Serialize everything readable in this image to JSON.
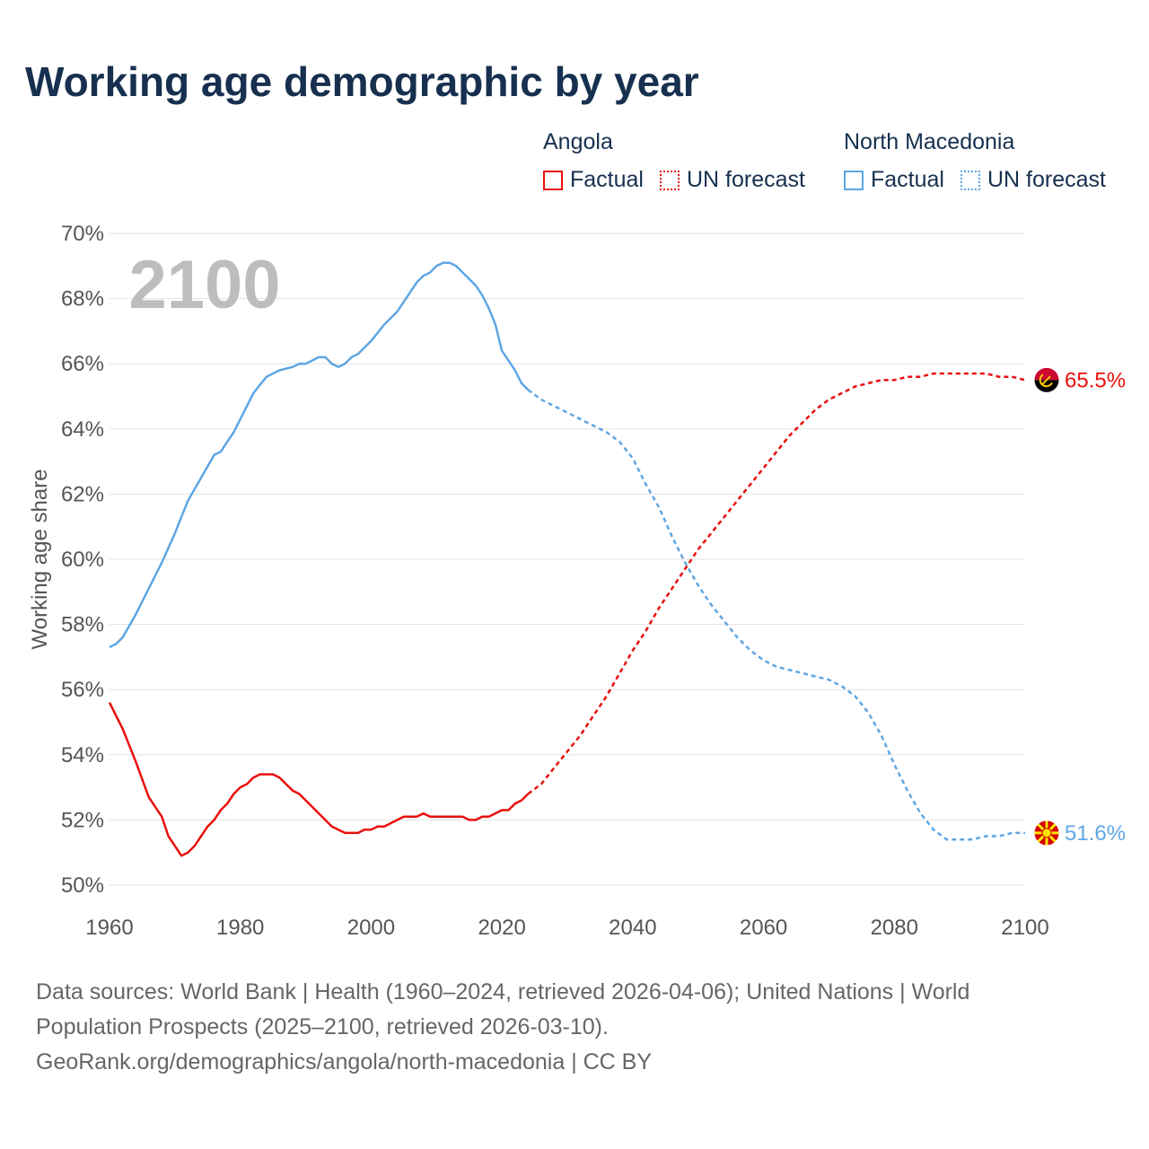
{
  "title": "Working age demographic by year",
  "legend": {
    "groups": [
      {
        "name": "Angola",
        "factual": "Factual",
        "forecast": "UN forecast",
        "color": "#e8100c"
      },
      {
        "name": "North Macedonia",
        "factual": "Factual",
        "forecast": "UN forecast",
        "color": "#5fa6e3"
      }
    ]
  },
  "year_watermark": "2100",
  "footer": {
    "sources": "Data sources: World Bank | Health (1960–2024, retrieved 2026-04-06); United Nations | World Population Prospects (2025–2100, retrieved 2026-03-10).",
    "credit": "GeoRank.org/demographics/angola/north-macedonia | CC BY"
  },
  "chart_data": {
    "type": "line",
    "title": "Working age demographic by year",
    "xlabel": "",
    "ylabel": "Working age share",
    "xlim": [
      1960,
      2100
    ],
    "ylim": [
      50,
      70
    ],
    "xticks": [
      1960,
      1980,
      2000,
      2020,
      2040,
      2060,
      2080,
      2100
    ],
    "xtick_labels": [
      "1960",
      "1980",
      "2000",
      "2020",
      "2040",
      "2060",
      "2080",
      "2100"
    ],
    "yticks": [
      50,
      52,
      54,
      56,
      58,
      60,
      62,
      64,
      66,
      68,
      70
    ],
    "ytick_labels": [
      "50%",
      "52%",
      "54%",
      "56%",
      "58%",
      "60%",
      "62%",
      "64%",
      "66%",
      "68%",
      "70%"
    ],
    "factual_range": [
      1960,
      2024
    ],
    "forecast_range": [
      2024,
      2100
    ],
    "series": [
      {
        "name": "Angola",
        "color": "#e8100c",
        "end_label": "65.5%",
        "flag_icon": "angola-flag-icon",
        "points": [
          [
            1960,
            55.6
          ],
          [
            1962,
            54.8
          ],
          [
            1964,
            53.8
          ],
          [
            1966,
            52.7
          ],
          [
            1968,
            52.1
          ],
          [
            1969,
            51.5
          ],
          [
            1971,
            50.9
          ],
          [
            1972,
            51.0
          ],
          [
            1973,
            51.2
          ],
          [
            1975,
            51.8
          ],
          [
            1976,
            52.0
          ],
          [
            1977,
            52.3
          ],
          [
            1978,
            52.5
          ],
          [
            1979,
            52.8
          ],
          [
            1980,
            53.0
          ],
          [
            1981,
            53.1
          ],
          [
            1982,
            53.3
          ],
          [
            1983,
            53.4
          ],
          [
            1985,
            53.4
          ],
          [
            1986,
            53.3
          ],
          [
            1987,
            53.1
          ],
          [
            1988,
            52.9
          ],
          [
            1989,
            52.8
          ],
          [
            1990,
            52.6
          ],
          [
            1992,
            52.2
          ],
          [
            1994,
            51.8
          ],
          [
            1996,
            51.6
          ],
          [
            1998,
            51.6
          ],
          [
            1999,
            51.7
          ],
          [
            2000,
            51.7
          ],
          [
            2001,
            51.8
          ],
          [
            2002,
            51.8
          ],
          [
            2004,
            52.0
          ],
          [
            2005,
            52.1
          ],
          [
            2006,
            52.1
          ],
          [
            2007,
            52.1
          ],
          [
            2008,
            52.2
          ],
          [
            2009,
            52.1
          ],
          [
            2010,
            52.1
          ],
          [
            2012,
            52.1
          ],
          [
            2014,
            52.1
          ],
          [
            2015,
            52.0
          ],
          [
            2016,
            52.0
          ],
          [
            2017,
            52.1
          ],
          [
            2018,
            52.1
          ],
          [
            2019,
            52.2
          ],
          [
            2020,
            52.3
          ],
          [
            2021,
            52.3
          ],
          [
            2022,
            52.5
          ],
          [
            2023,
            52.6
          ],
          [
            2024,
            52.8
          ],
          [
            2026,
            53.1
          ],
          [
            2028,
            53.6
          ],
          [
            2030,
            54.1
          ],
          [
            2032,
            54.6
          ],
          [
            2034,
            55.2
          ],
          [
            2036,
            55.8
          ],
          [
            2038,
            56.5
          ],
          [
            2040,
            57.2
          ],
          [
            2042,
            57.8
          ],
          [
            2044,
            58.5
          ],
          [
            2046,
            59.1
          ],
          [
            2048,
            59.7
          ],
          [
            2050,
            60.3
          ],
          [
            2052,
            60.8
          ],
          [
            2054,
            61.3
          ],
          [
            2056,
            61.8
          ],
          [
            2058,
            62.3
          ],
          [
            2060,
            62.8
          ],
          [
            2062,
            63.3
          ],
          [
            2064,
            63.8
          ],
          [
            2066,
            64.2
          ],
          [
            2068,
            64.6
          ],
          [
            2070,
            64.9
          ],
          [
            2072,
            65.1
          ],
          [
            2074,
            65.3
          ],
          [
            2076,
            65.4
          ],
          [
            2078,
            65.5
          ],
          [
            2080,
            65.5
          ],
          [
            2082,
            65.6
          ],
          [
            2084,
            65.6
          ],
          [
            2086,
            65.7
          ],
          [
            2088,
            65.7
          ],
          [
            2090,
            65.7
          ],
          [
            2092,
            65.7
          ],
          [
            2094,
            65.7
          ],
          [
            2096,
            65.6
          ],
          [
            2098,
            65.6
          ],
          [
            2100,
            65.5
          ]
        ]
      },
      {
        "name": "North Macedonia",
        "color": "#5fa6e3",
        "end_label": "51.6%",
        "flag_icon": "north-macedonia-flag-icon",
        "points": [
          [
            1960,
            57.3
          ],
          [
            1961,
            57.4
          ],
          [
            1962,
            57.6
          ],
          [
            1964,
            58.3
          ],
          [
            1966,
            59.1
          ],
          [
            1968,
            59.9
          ],
          [
            1970,
            60.8
          ],
          [
            1971,
            61.3
          ],
          [
            1972,
            61.8
          ],
          [
            1974,
            62.5
          ],
          [
            1976,
            63.2
          ],
          [
            1977,
            63.3
          ],
          [
            1978,
            63.6
          ],
          [
            1979,
            63.9
          ],
          [
            1980,
            64.3
          ],
          [
            1982,
            65.1
          ],
          [
            1984,
            65.6
          ],
          [
            1985,
            65.7
          ],
          [
            1986,
            65.8
          ],
          [
            1988,
            65.9
          ],
          [
            1989,
            66.0
          ],
          [
            1990,
            66.0
          ],
          [
            1992,
            66.2
          ],
          [
            1993,
            66.2
          ],
          [
            1994,
            66.0
          ],
          [
            1995,
            65.9
          ],
          [
            1996,
            66.0
          ],
          [
            1997,
            66.2
          ],
          [
            1998,
            66.3
          ],
          [
            1999,
            66.5
          ],
          [
            2000,
            66.7
          ],
          [
            2002,
            67.2
          ],
          [
            2004,
            67.6
          ],
          [
            2006,
            68.2
          ],
          [
            2007,
            68.5
          ],
          [
            2008,
            68.7
          ],
          [
            2009,
            68.8
          ],
          [
            2010,
            69.0
          ],
          [
            2011,
            69.1
          ],
          [
            2012,
            69.1
          ],
          [
            2013,
            69.0
          ],
          [
            2014,
            68.8
          ],
          [
            2015,
            68.6
          ],
          [
            2016,
            68.4
          ],
          [
            2017,
            68.1
          ],
          [
            2018,
            67.7
          ],
          [
            2019,
            67.2
          ],
          [
            2020,
            66.4
          ],
          [
            2021,
            66.1
          ],
          [
            2022,
            65.8
          ],
          [
            2023,
            65.4
          ],
          [
            2024,
            65.2
          ],
          [
            2026,
            64.9
          ],
          [
            2028,
            64.7
          ],
          [
            2030,
            64.5
          ],
          [
            2032,
            64.3
          ],
          [
            2034,
            64.1
          ],
          [
            2036,
            63.9
          ],
          [
            2038,
            63.6
          ],
          [
            2040,
            63.1
          ],
          [
            2042,
            62.3
          ],
          [
            2044,
            61.6
          ],
          [
            2046,
            60.7
          ],
          [
            2048,
            59.9
          ],
          [
            2050,
            59.2
          ],
          [
            2052,
            58.6
          ],
          [
            2054,
            58.1
          ],
          [
            2056,
            57.6
          ],
          [
            2058,
            57.2
          ],
          [
            2060,
            56.9
          ],
          [
            2062,
            56.7
          ],
          [
            2064,
            56.6
          ],
          [
            2066,
            56.5
          ],
          [
            2068,
            56.4
          ],
          [
            2070,
            56.3
          ],
          [
            2072,
            56.1
          ],
          [
            2074,
            55.8
          ],
          [
            2076,
            55.3
          ],
          [
            2078,
            54.6
          ],
          [
            2080,
            53.7
          ],
          [
            2082,
            52.9
          ],
          [
            2084,
            52.2
          ],
          [
            2086,
            51.7
          ],
          [
            2088,
            51.4
          ],
          [
            2090,
            51.4
          ],
          [
            2092,
            51.4
          ],
          [
            2094,
            51.5
          ],
          [
            2096,
            51.5
          ],
          [
            2098,
            51.6
          ],
          [
            2100,
            51.6
          ]
        ]
      }
    ]
  }
}
